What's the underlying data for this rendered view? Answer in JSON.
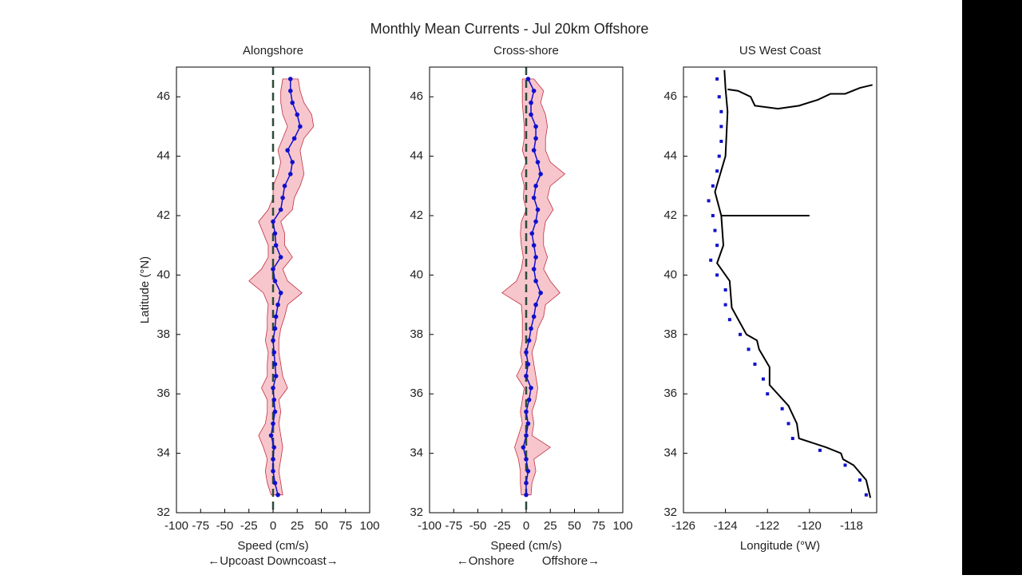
{
  "title": "Monthly Mean Currents - Jul 20km Offshore",
  "ylabel": "Latitude (°N)",
  "chart_data": [
    {
      "type": "profile",
      "title": "Alongshore",
      "xlabel": "Speed (cm/s)",
      "note": "←Upcoast Downcoast→",
      "color": "#1010cc",
      "band_color": "#f7c6cc",
      "band_edge": "#c03040",
      "zero_line": 0,
      "zero_color": "#2e4a3a",
      "y": [
        32.6,
        33.0,
        33.4,
        33.8,
        34.2,
        34.6,
        35.0,
        35.4,
        35.8,
        36.2,
        36.6,
        37.0,
        37.4,
        37.8,
        38.2,
        38.6,
        39.0,
        39.4,
        39.8,
        40.2,
        40.6,
        41.0,
        41.4,
        41.8,
        42.2,
        42.6,
        43.0,
        43.4,
        43.8,
        44.2,
        44.6,
        45.0,
        45.4,
        45.8,
        46.2,
        46.6
      ],
      "values": [
        5,
        2,
        0,
        0,
        1,
        -2,
        0,
        2,
        1,
        0,
        3,
        2,
        1,
        0,
        2,
        3,
        5,
        8,
        2,
        0,
        8,
        3,
        2,
        0,
        8,
        10,
        12,
        18,
        20,
        15,
        22,
        28,
        25,
        20,
        18,
        18
      ],
      "lower": [
        -2,
        -6,
        -8,
        -6,
        -10,
        -15,
        -8,
        -6,
        -6,
        -12,
        -6,
        -6,
        -5,
        -8,
        -6,
        -6,
        -5,
        -10,
        -25,
        -12,
        -5,
        -5,
        -10,
        -15,
        -5,
        0,
        0,
        5,
        8,
        5,
        10,
        15,
        10,
        8,
        8,
        10
      ],
      "upper": [
        10,
        8,
        6,
        8,
        10,
        8,
        6,
        8,
        6,
        15,
        10,
        8,
        6,
        6,
        8,
        12,
        15,
        30,
        15,
        10,
        20,
        12,
        12,
        8,
        20,
        22,
        28,
        32,
        30,
        28,
        32,
        42,
        40,
        32,
        28,
        26
      ],
      "xlim": [
        -100,
        100
      ],
      "xticks": [
        -100,
        -75,
        -50,
        -25,
        0,
        25,
        50,
        75,
        100
      ],
      "ylim": [
        32,
        47
      ],
      "yticks": [
        32,
        34,
        36,
        38,
        40,
        42,
        44,
        46
      ]
    },
    {
      "type": "profile",
      "title": "Cross-shore",
      "xlabel": "Speed (cm/s)",
      "note_left": "←Onshore",
      "note_right": "Offshore→",
      "color": "#1010cc",
      "band_color": "#f7c6cc",
      "band_edge": "#c03040",
      "zero_line": 0,
      "zero_color": "#2e4a3a",
      "y": [
        32.6,
        33.0,
        33.4,
        33.8,
        34.2,
        34.6,
        35.0,
        35.4,
        35.8,
        36.2,
        36.6,
        37.0,
        37.4,
        37.8,
        38.2,
        38.6,
        39.0,
        39.4,
        39.8,
        40.2,
        40.6,
        41.0,
        41.4,
        41.8,
        42.2,
        42.6,
        43.0,
        43.4,
        43.8,
        44.2,
        44.6,
        45.0,
        45.4,
        45.8,
        46.2,
        46.6
      ],
      "values": [
        0,
        0,
        2,
        0,
        -3,
        0,
        2,
        0,
        3,
        5,
        0,
        2,
        0,
        3,
        5,
        8,
        10,
        15,
        10,
        8,
        10,
        8,
        6,
        10,
        12,
        8,
        10,
        15,
        12,
        8,
        10,
        10,
        5,
        5,
        8,
        2
      ],
      "lower": [
        -5,
        -6,
        -6,
        -8,
        -12,
        -8,
        -4,
        -6,
        -4,
        -2,
        -10,
        -4,
        -6,
        -4,
        -4,
        -4,
        -5,
        -25,
        -10,
        -5,
        -3,
        -5,
        -6,
        -5,
        0,
        -3,
        -2,
        -5,
        0,
        -4,
        -2,
        -2,
        -3,
        -4,
        -4,
        -4
      ],
      "upper": [
        5,
        6,
        10,
        8,
        25,
        6,
        8,
        6,
        10,
        12,
        10,
        8,
        6,
        10,
        12,
        18,
        20,
        35,
        25,
        18,
        22,
        18,
        18,
        20,
        28,
        22,
        25,
        40,
        25,
        20,
        20,
        22,
        20,
        15,
        18,
        8
      ],
      "xlim": [
        -100,
        100
      ],
      "xticks": [
        -100,
        -75,
        -50,
        -25,
        0,
        25,
        50,
        75,
        100
      ],
      "ylim": [
        32,
        47
      ],
      "yticks": [
        32,
        34,
        36,
        38,
        40,
        42,
        44,
        46
      ]
    },
    {
      "type": "map",
      "title": "US West Coast",
      "xlabel": "Longitude (°W)",
      "line_color": "#000000",
      "point_color": "#1010cc",
      "lines": [
        {
          "x": [
            -117.1,
            -117.3,
            -117.9,
            -118.4,
            -118.5,
            -119.2,
            -120.5,
            -120.6,
            -121.0,
            -121.9,
            -121.9,
            -122.4,
            -122.5,
            -123.0,
            -123.7,
            -123.8,
            -124.4,
            -124.1,
            -124.2,
            -124.5,
            -124.0,
            -123.9,
            -124.0,
            -124.05
          ],
          "y": [
            32.5,
            33.1,
            33.6,
            33.8,
            34.0,
            34.2,
            34.5,
            35.0,
            35.6,
            36.3,
            36.9,
            37.5,
            37.8,
            38.0,
            38.9,
            39.8,
            40.4,
            41.0,
            42.0,
            42.8,
            44.0,
            45.5,
            46.3,
            46.9
          ]
        },
        {
          "x": [
            -124.2,
            -120.0
          ],
          "y": [
            42.0,
            42.0
          ]
        },
        {
          "x": [
            -123.9,
            -123.4,
            -122.8,
            -122.6,
            -121.5,
            -120.5,
            -119.6,
            -119.0,
            -118.3,
            -117.6,
            -117.0
          ],
          "y": [
            46.25,
            46.2,
            46.0,
            45.7,
            45.6,
            45.7,
            45.9,
            46.1,
            46.1,
            46.3,
            46.4
          ]
        }
      ],
      "points": {
        "x": [
          -117.3,
          -117.6,
          -118.3,
          -119.5,
          -120.8,
          -121.0,
          -121.3,
          -122.0,
          -122.2,
          -122.6,
          -122.9,
          -123.3,
          -123.8,
          -124.0,
          -124.0,
          -124.4,
          -124.7,
          -124.4,
          -124.5,
          -124.6,
          -124.8,
          -124.6,
          -124.4,
          -124.3,
          -124.2,
          -124.2,
          -124.2,
          -124.3,
          -124.4
        ],
        "y": [
          32.6,
          33.1,
          33.6,
          34.1,
          34.5,
          35.0,
          35.5,
          36.0,
          36.5,
          37.0,
          37.5,
          38.0,
          38.5,
          39.0,
          39.5,
          40.0,
          40.5,
          41.0,
          41.5,
          42.0,
          42.5,
          43.0,
          43.5,
          44.0,
          44.5,
          45.0,
          45.5,
          46.0,
          46.6
        ]
      },
      "xlim": [
        -126,
        -116.8
      ],
      "xticks": [
        -126,
        -124,
        -122,
        -120,
        -118
      ],
      "ylim": [
        32,
        47
      ],
      "yticks": [
        32,
        34,
        36,
        38,
        40,
        42,
        44,
        46
      ]
    }
  ]
}
